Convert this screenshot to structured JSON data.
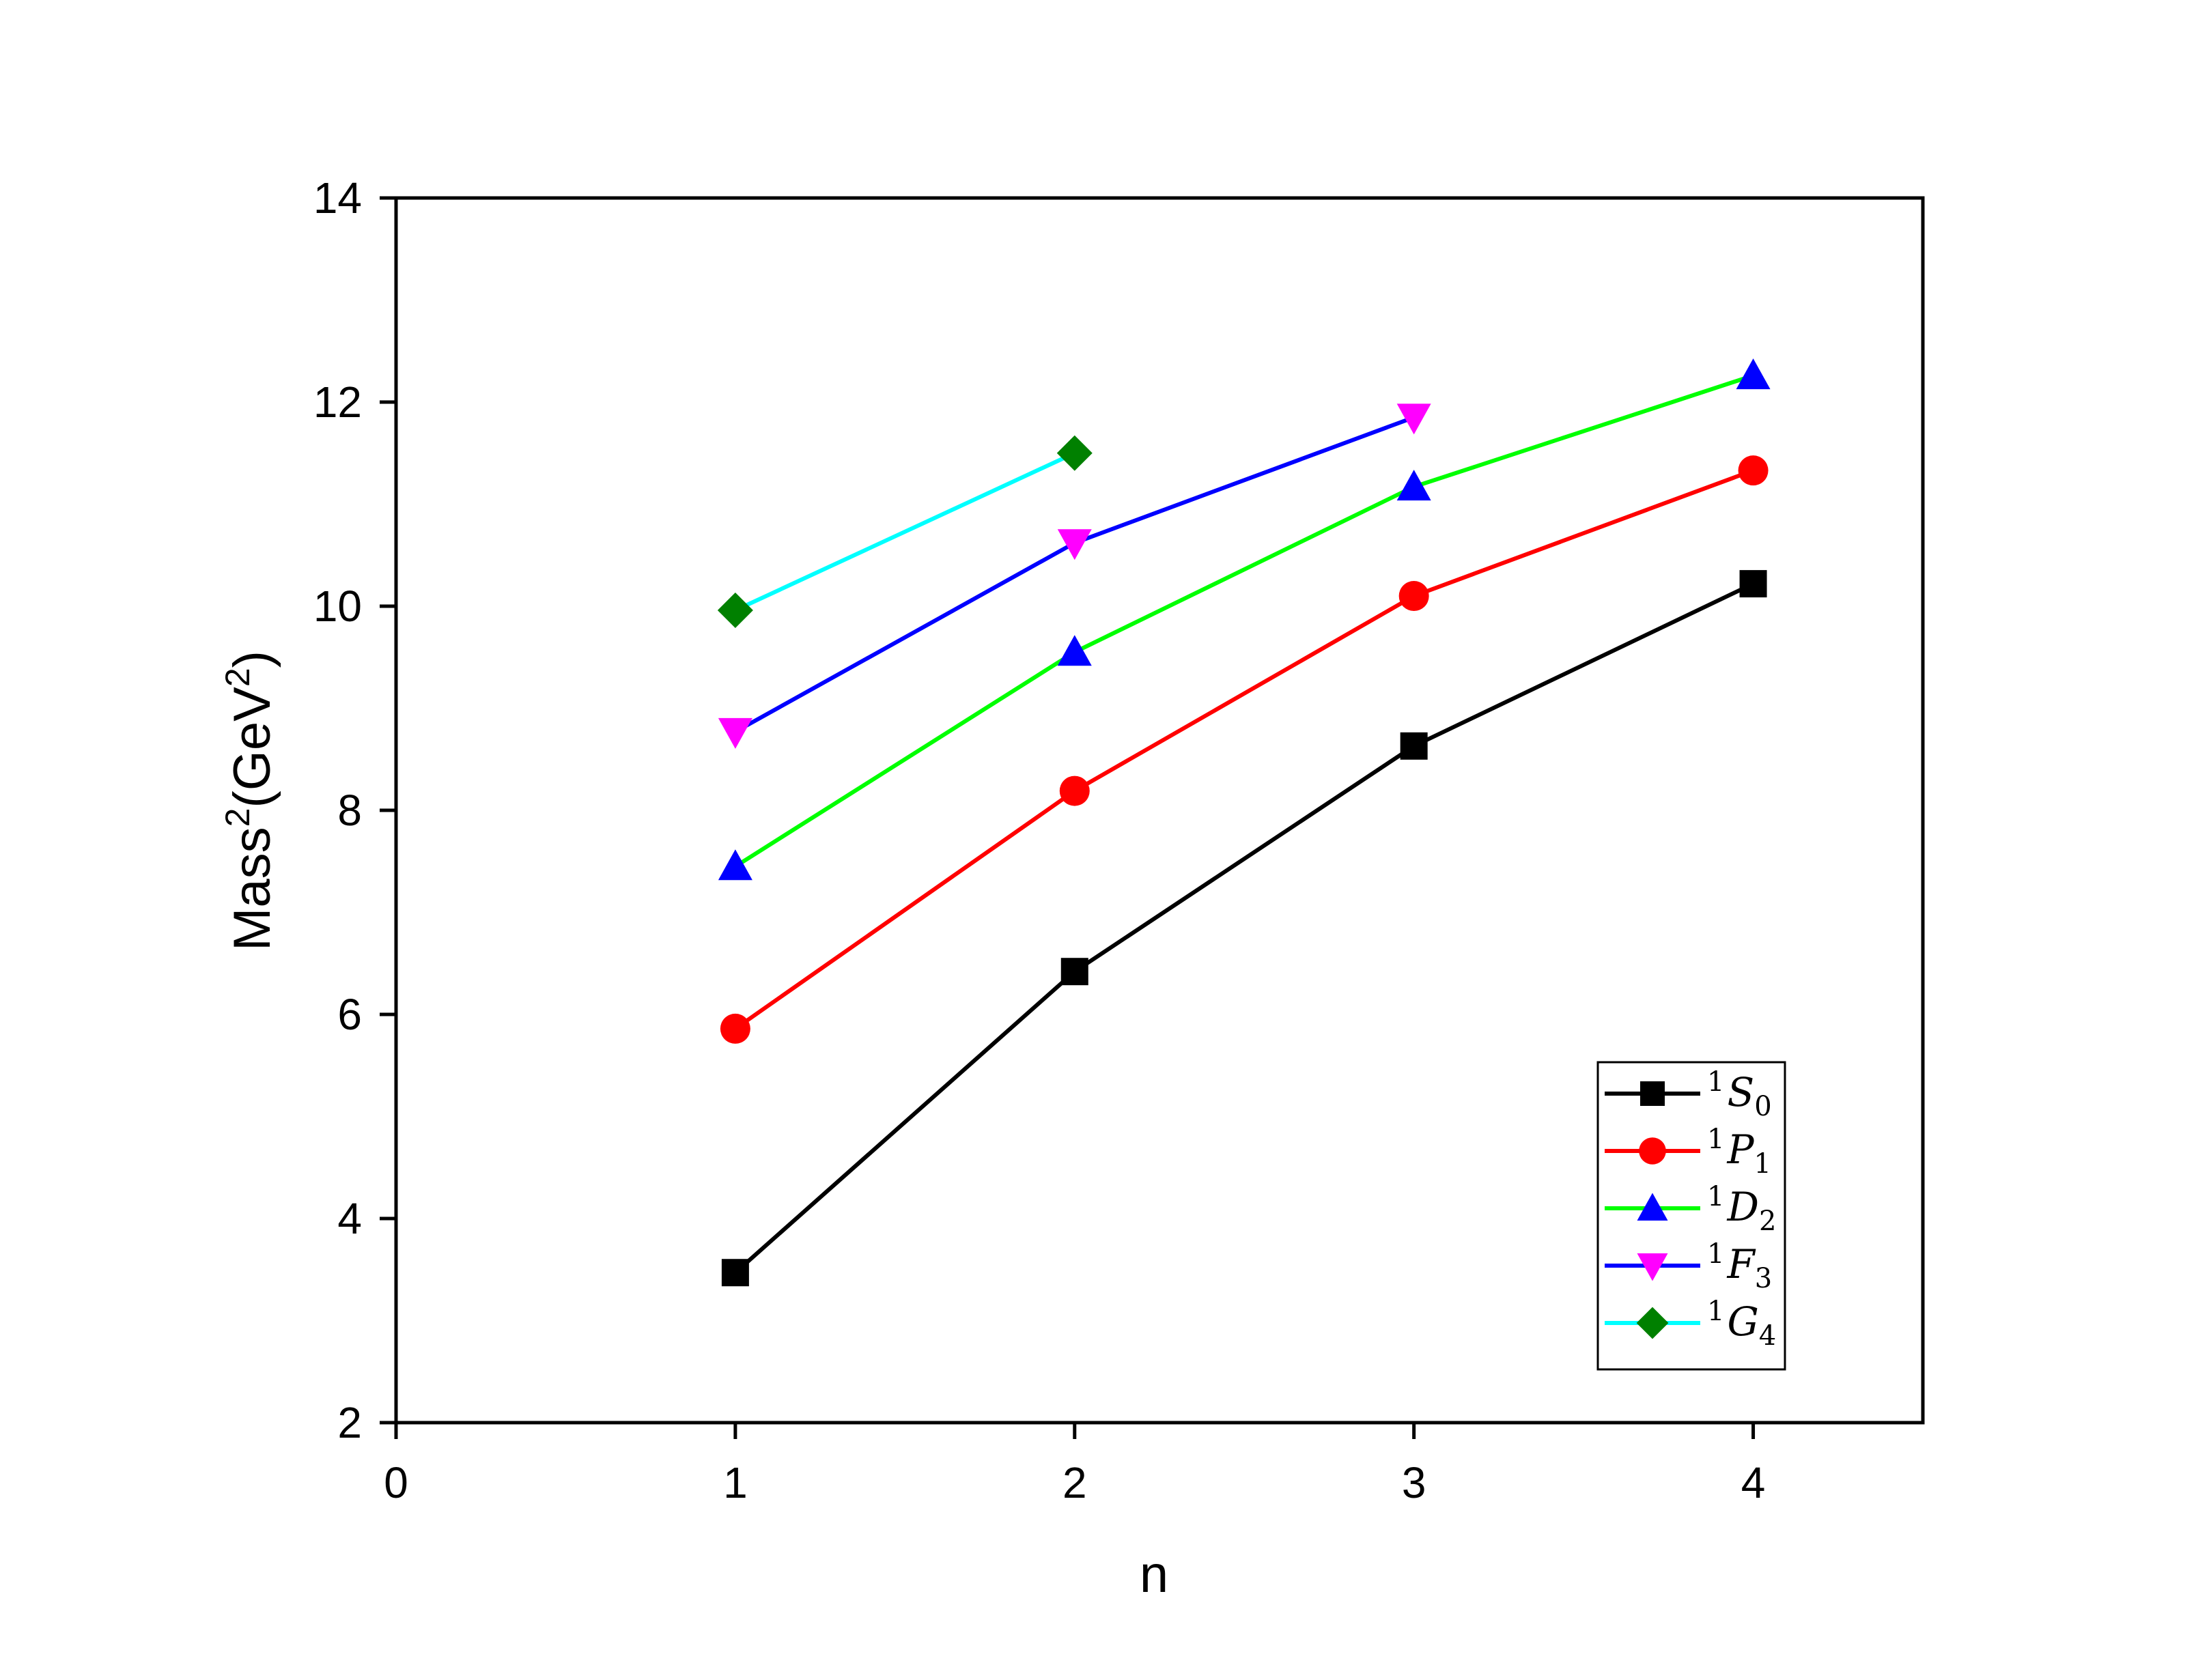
{
  "chart_data": {
    "type": "line",
    "title": "",
    "xlabel": "n",
    "ylabel": "Mass",
    "ylabel_sup": "2",
    "ylabel_unit": "(GeV",
    "ylabel_unit_sup": "2",
    "ylabel_close": ")",
    "xlim": [
      0,
      4.5
    ],
    "ylim": [
      2,
      14
    ],
    "xticks": [
      "0",
      "1",
      "2",
      "3",
      "4"
    ],
    "yticks": [
      "2",
      "4",
      "6",
      "8",
      "10",
      "12",
      "14"
    ],
    "legend_position": "bottom-right",
    "grid": false,
    "series": [
      {
        "label_sup": "1",
        "label_main": "S",
        "label_sub": "0",
        "line_color": "#000000",
        "marker_color": "#000000",
        "marker": "square",
        "x": [
          1,
          2,
          3,
          4
        ],
        "y": [
          3.47,
          6.42,
          8.63,
          10.22
        ]
      },
      {
        "label_sup": "1",
        "label_main": "P",
        "label_sub": "1",
        "line_color": "#ff0000",
        "marker_color": "#ff0000",
        "marker": "circle",
        "x": [
          1,
          2,
          3,
          4
        ],
        "y": [
          5.86,
          8.19,
          10.1,
          11.33
        ]
      },
      {
        "label_sup": "1",
        "label_main": "D",
        "label_sub": "2",
        "line_color": "#00ff00",
        "marker_color": "#0000ff",
        "marker": "triangle-up",
        "x": [
          1,
          2,
          3,
          4
        ],
        "y": [
          7.45,
          9.55,
          11.17,
          12.26
        ]
      },
      {
        "label_sup": "1",
        "label_main": "F",
        "label_sub": "3",
        "line_color": "#0000ff",
        "marker_color": "#ff00ff",
        "marker": "triangle-down",
        "x": [
          1,
          2,
          3
        ],
        "y": [
          8.77,
          10.62,
          11.85
        ]
      },
      {
        "label_sup": "1",
        "label_main": "G",
        "label_sub": "4",
        "line_color": "#00ffff",
        "marker_color": "#008000",
        "marker": "diamond",
        "x": [
          1,
          2
        ],
        "y": [
          9.96,
          11.5
        ]
      }
    ]
  }
}
